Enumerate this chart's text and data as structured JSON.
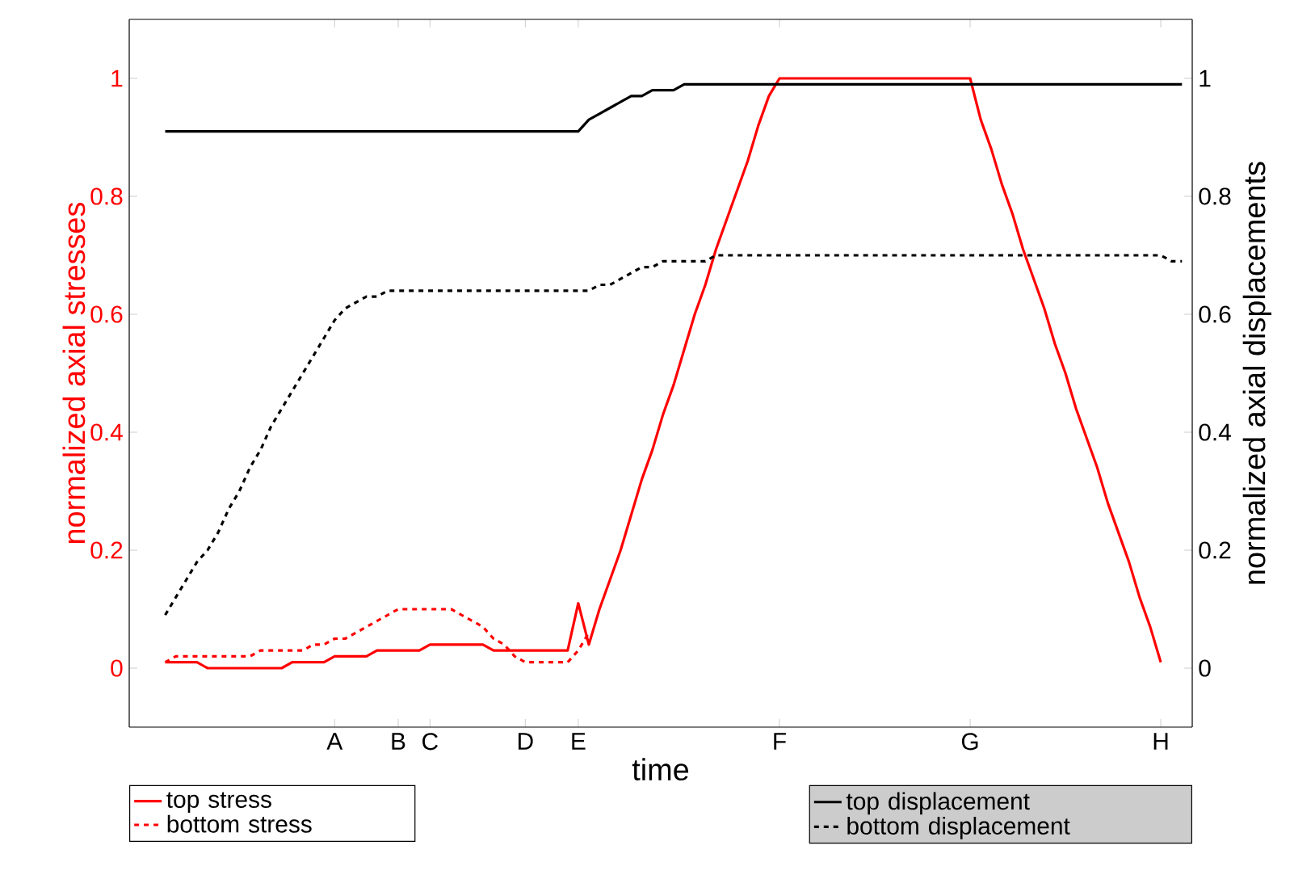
{
  "chart_data": {
    "type": "line",
    "xlabel": "time",
    "ylabel": "normalized axial stresses",
    "y2label": "normalized axial displacements",
    "categories": [
      null,
      null,
      null,
      null,
      null,
      null,
      null,
      null,
      null,
      null,
      null,
      null,
      null,
      null,
      null,
      null,
      "A",
      null,
      null,
      null,
      null,
      null,
      "B",
      null,
      null,
      "C",
      null,
      null,
      null,
      null,
      null,
      null,
      null,
      null,
      "D",
      null,
      null,
      null,
      null,
      "E",
      null,
      null,
      null,
      null,
      null,
      null,
      null,
      null,
      null,
      null,
      null,
      null,
      null,
      null,
      null,
      null,
      null,
      null,
      "F",
      null,
      null,
      null,
      null,
      null,
      null,
      null,
      null,
      null,
      null,
      null,
      null,
      null,
      null,
      null,
      null,
      null,
      "G",
      null,
      null,
      null,
      null,
      null,
      null,
      null,
      null,
      null,
      null,
      null,
      null,
      null,
      null,
      null,
      null,
      null,
      "H",
      null,
      null
    ],
    "ylim": [
      -0.1,
      1.1
    ],
    "y2lim": [
      -0.1,
      1.1
    ],
    "yticks": [
      0,
      0.2,
      0.4,
      0.6,
      0.8,
      1
    ],
    "y2ticks": [
      0,
      0.2,
      0.4,
      0.6,
      0.8,
      1
    ],
    "grid": false,
    "legend": "bottom",
    "marker": "none",
    "series": [
      {
        "name": "top stress",
        "color": "#ff0000",
        "line_style": "solid",
        "values": [
          0.01,
          0.01,
          0.01,
          0.01,
          0,
          0,
          0,
          0,
          0,
          0,
          0,
          0,
          0.01,
          0.01,
          0.01,
          0.01,
          0.02,
          0.02,
          0.02,
          0.02,
          0.03,
          0.03,
          0.03,
          0.03,
          0.03,
          0.04,
          0.04,
          0.04,
          0.04,
          0.04,
          0.04,
          0.03,
          0.03,
          0.03,
          0.03,
          0.03,
          0.03,
          0.03,
          0.03,
          0.11,
          0.04,
          0.1,
          0.15,
          0.2,
          0.26,
          0.32,
          0.37,
          0.43,
          0.48,
          0.54,
          0.6,
          0.65,
          0.71,
          0.76,
          0.81,
          0.86,
          0.92,
          0.97,
          1,
          1,
          1,
          1,
          1,
          1,
          1,
          1,
          1,
          1,
          1,
          1,
          1,
          1,
          1,
          1,
          1,
          1,
          1,
          0.93,
          0.88,
          0.82,
          0.77,
          0.71,
          0.66,
          0.61,
          0.55,
          0.5,
          0.44,
          0.39,
          0.34,
          0.28,
          0.23,
          0.18,
          0.12,
          0.07,
          0.01,
          null,
          null
        ]
      },
      {
        "name": "bottom stress",
        "color": "#ff0000",
        "line_style": "dashed",
        "values": [
          0.01,
          0.02,
          0.02,
          0.02,
          0.02,
          0.02,
          0.02,
          0.02,
          0.02,
          0.03,
          0.03,
          0.03,
          0.03,
          0.03,
          0.04,
          0.04,
          0.05,
          0.05,
          0.06,
          0.07,
          0.08,
          0.09,
          0.1,
          0.1,
          0.1,
          0.1,
          0.1,
          0.1,
          0.09,
          0.08,
          0.07,
          0.05,
          0.04,
          0.02,
          0.01,
          0.01,
          0.01,
          0.01,
          0.01,
          0.03,
          0.06,
          null,
          null,
          null,
          null,
          null,
          null,
          null,
          null,
          null,
          null,
          null,
          null,
          null,
          null,
          null,
          null,
          null,
          null,
          null,
          null,
          null,
          null,
          null,
          null,
          null,
          null,
          null,
          null,
          null,
          null,
          null,
          null,
          null,
          null,
          null,
          null,
          null,
          null,
          null,
          null,
          null,
          null,
          null,
          null,
          null,
          null,
          null,
          null,
          null,
          null,
          null,
          null,
          null,
          null,
          null,
          null
        ]
      },
      {
        "name": "top displacement",
        "color": "#000000",
        "line_style": "solid",
        "axis": "y2",
        "values": [
          0.91,
          0.91,
          0.91,
          0.91,
          0.91,
          0.91,
          0.91,
          0.91,
          0.91,
          0.91,
          0.91,
          0.91,
          0.91,
          0.91,
          0.91,
          0.91,
          0.91,
          0.91,
          0.91,
          0.91,
          0.91,
          0.91,
          0.91,
          0.91,
          0.91,
          0.91,
          0.91,
          0.91,
          0.91,
          0.91,
          0.91,
          0.91,
          0.91,
          0.91,
          0.91,
          0.91,
          0.91,
          0.91,
          0.91,
          0.91,
          0.93,
          0.94,
          0.95,
          0.96,
          0.97,
          0.97,
          0.98,
          0.98,
          0.98,
          0.99,
          0.99,
          0.99,
          0.99,
          0.99,
          0.99,
          0.99,
          0.99,
          0.99,
          0.99,
          0.99,
          0.99,
          0.99,
          0.99,
          0.99,
          0.99,
          0.99,
          0.99,
          0.99,
          0.99,
          0.99,
          0.99,
          0.99,
          0.99,
          0.99,
          0.99,
          0.99,
          0.99,
          0.99,
          0.99,
          0.99,
          0.99,
          0.99,
          0.99,
          0.99,
          0.99,
          0.99,
          0.99,
          0.99,
          0.99,
          0.99,
          0.99,
          0.99,
          0.99,
          0.99,
          0.99,
          0.99,
          0.99
        ]
      },
      {
        "name": "bottom displacement",
        "color": "#000000",
        "line_style": "dashed",
        "axis": "y2",
        "values": [
          0.09,
          0.12,
          0.15,
          0.18,
          0.2,
          0.23,
          0.27,
          0.3,
          0.34,
          0.37,
          0.41,
          0.44,
          0.47,
          0.5,
          0.53,
          0.56,
          0.59,
          0.61,
          0.62,
          0.63,
          0.63,
          0.64,
          0.64,
          0.64,
          0.64,
          0.64,
          0.64,
          0.64,
          0.64,
          0.64,
          0.64,
          0.64,
          0.64,
          0.64,
          0.64,
          0.64,
          0.64,
          0.64,
          0.64,
          0.64,
          0.64,
          0.65,
          0.65,
          0.66,
          0.67,
          0.68,
          0.68,
          0.69,
          0.69,
          0.69,
          0.69,
          0.69,
          0.7,
          0.7,
          0.7,
          0.7,
          0.7,
          0.7,
          0.7,
          0.7,
          0.7,
          0.7,
          0.7,
          0.7,
          0.7,
          0.7,
          0.7,
          0.7,
          0.7,
          0.7,
          0.7,
          0.7,
          0.7,
          0.7,
          0.7,
          0.7,
          0.7,
          0.7,
          0.7,
          0.7,
          0.7,
          0.7,
          0.7,
          0.7,
          0.7,
          0.7,
          0.7,
          0.7,
          0.7,
          0.7,
          0.7,
          0.7,
          0.7,
          0.7,
          0.7,
          0.69,
          0.69
        ]
      }
    ]
  }
}
